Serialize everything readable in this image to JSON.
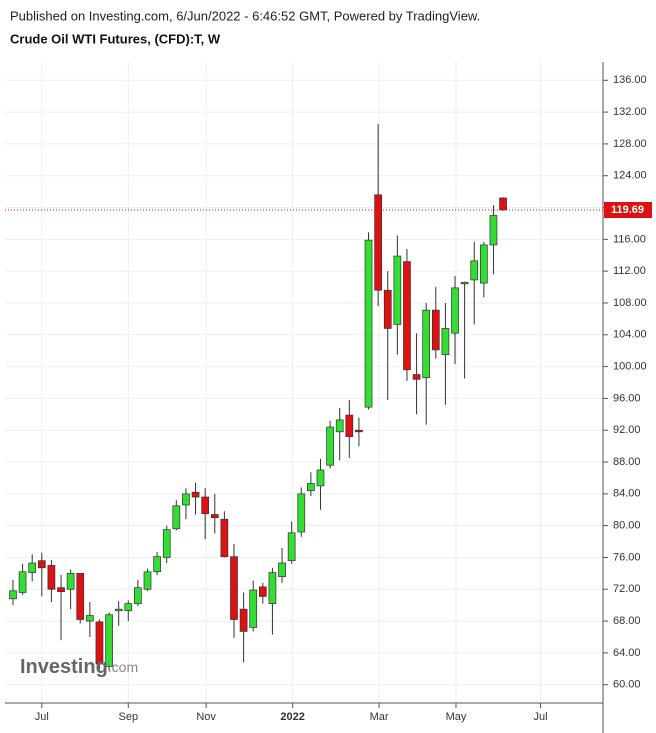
{
  "chart_data": {
    "type": "candlestick",
    "header": "Published on Investing.com, 6/Jun/2022 - 6:46:52 GMT, Powered by TradingView.",
    "title": "Crude Oil WTI Futures, (CFD):T, W",
    "logo": [
      "Investing",
      ".com"
    ],
    "open": [
      70.8,
      71.6,
      74.1,
      75.6,
      75,
      72.2,
      72,
      74,
      68,
      67.9,
      62.3,
      69.3,
      69.3,
      70.2,
      72,
      74.2,
      76,
      79.6,
      82.6,
      84.2,
      83.6,
      81.4,
      80.8,
      76.1,
      69.5,
      67.2,
      72.3,
      70.2,
      73.6,
      75.6,
      79.2,
      84.4,
      85,
      87.6,
      91.8,
      93.9,
      92,
      94.9,
      121.6,
      109.6,
      105.3,
      113.2,
      99,
      98.6,
      107.1,
      101.5,
      104.2,
      110.4,
      110.9,
      110.5,
      115.3,
      121.2
    ],
    "high": [
      73.2,
      75.2,
      76.4,
      76.6,
      75.7,
      73.8,
      74.5,
      74,
      70.4,
      68.2,
      69.1,
      70.5,
      70.6,
      73.2,
      74.6,
      76.7,
      80,
      83.2,
      84.7,
      85.4,
      84.7,
      84,
      81.8,
      77.7,
      71.6,
      73.1,
      72.8,
      74.7,
      77.2,
      80.5,
      84.8,
      86.7,
      88.4,
      93.2,
      94.8,
      95.8,
      93.6,
      116.9,
      130.5,
      112,
      116.5,
      114.8,
      104.2,
      108,
      110,
      108,
      111.4,
      110.7,
      115.7,
      115.7,
      120.3,
      121.3
    ],
    "low": [
      70,
      71.3,
      73,
      71.1,
      70.4,
      65.6,
      69.5,
      67.7,
      66,
      62,
      61.8,
      67.4,
      68,
      69.9,
      71.8,
      73.8,
      75.3,
      79.4,
      80.8,
      81.4,
      78.3,
      79,
      76,
      65.9,
      62.8,
      66.7,
      70.2,
      66.3,
      72.8,
      75.2,
      78.6,
      83.7,
      82,
      87.2,
      88.2,
      88.5,
      90,
      94.6,
      107.6,
      95.8,
      101.5,
      98.2,
      94,
      92.7,
      101,
      95.2,
      100.3,
      98.5,
      105.3,
      108.7,
      111.6,
      119.6
    ],
    "close": [
      71.8,
      74.2,
      75.3,
      74.7,
      72,
      71.7,
      74,
      68.2,
      68.7,
      62.6,
      68.8,
      69.5,
      70.2,
      72.2,
      74.2,
      76.1,
      79.5,
      82.5,
      84,
      83.6,
      81.5,
      81,
      76.1,
      68.2,
      66.7,
      71.9,
      71.1,
      74.1,
      75.3,
      79.1,
      84,
      85.3,
      87,
      92.4,
      93.3,
      91.2,
      91.8,
      115.9,
      109.6,
      104.8,
      113.9,
      99.6,
      98.4,
      107.1,
      102.1,
      104.8,
      109.9,
      110.6,
      113.3,
      115.3,
      119,
      119.69
    ],
    "up_color": "#33dd33",
    "down_color": "#dd1111",
    "last_price": 119.69,
    "ylim": [
      57.7,
      138.3
    ],
    "yticks": [
      {
        "value": 60,
        "label": "60.00"
      },
      {
        "value": 64,
        "label": "64.00"
      },
      {
        "value": 68,
        "label": "68.00"
      },
      {
        "value": 72,
        "label": "72.00"
      },
      {
        "value": 76,
        "label": "76.00"
      },
      {
        "value": 80,
        "label": "80.00"
      },
      {
        "value": 84,
        "label": "84.00"
      },
      {
        "value": 88,
        "label": "88.00"
      },
      {
        "value": 92,
        "label": "92.00"
      },
      {
        "value": 96,
        "label": "96.00"
      },
      {
        "value": 100,
        "label": "100.00"
      },
      {
        "value": 104,
        "label": "104.00"
      },
      {
        "value": 108,
        "label": "108.00"
      },
      {
        "value": 112,
        "label": "112.00"
      },
      {
        "value": 116,
        "label": "116.00"
      },
      {
        "value": 120,
        "label": "120.00"
      },
      {
        "value": 124,
        "label": "124.00"
      },
      {
        "value": 128,
        "label": "128.00"
      },
      {
        "value": 132,
        "label": "132.00"
      },
      {
        "value": 136,
        "label": "136.00"
      }
    ],
    "xlim": [
      -0.83,
      61.4
    ],
    "xticks": [
      {
        "value": 3.0,
        "label": "Jul"
      },
      {
        "value": 12.0,
        "label": "Sep"
      },
      {
        "value": 20.1,
        "label": "Nov"
      },
      {
        "value": 29.1,
        "label": "2022"
      },
      {
        "value": 38.1,
        "label": "Mar"
      },
      {
        "value": 46.1,
        "label": "May"
      },
      {
        "value": 54.9,
        "label": "Jul"
      }
    ],
    "grid": true
  }
}
